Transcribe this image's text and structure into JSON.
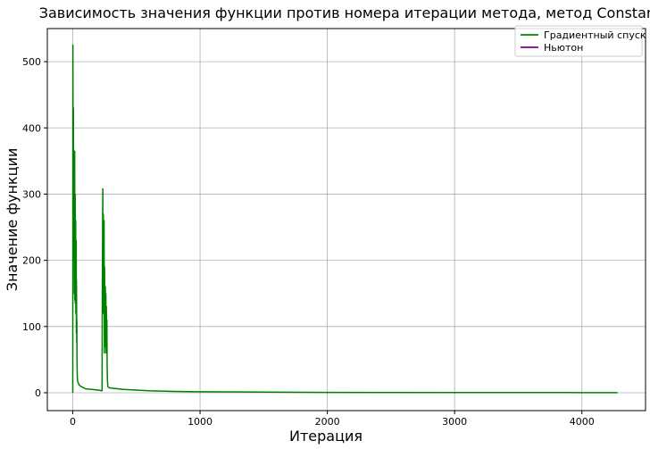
{
  "chart_data": {
    "type": "line",
    "title": "Зависимость значения функции против номера итерации метода, метод Constant",
    "xlabel": "Итерация",
    "ylabel": "Значение функции",
    "xlim": [
      -200,
      4500
    ],
    "ylim": [
      -27,
      550
    ],
    "xticks": [
      0,
      1000,
      2000,
      3000,
      4000
    ],
    "yticks": [
      0,
      100,
      200,
      300,
      400,
      500
    ],
    "grid": true,
    "legend_position": "top-right",
    "series": [
      {
        "name": "Градиентный спуск",
        "color": "#008000",
        "x": [
          0,
          1,
          2,
          3,
          4,
          5,
          6,
          7,
          8,
          9,
          10,
          11,
          12,
          13,
          14,
          15,
          16,
          17,
          18,
          19,
          20,
          21,
          22,
          23,
          24,
          25,
          26,
          27,
          28,
          29,
          30,
          31,
          32,
          33,
          34,
          35,
          36,
          38,
          40,
          45,
          50,
          60,
          80,
          100,
          150,
          200,
          230,
          232,
          234,
          236,
          238,
          240,
          242,
          244,
          246,
          248,
          250,
          252,
          254,
          256,
          258,
          260,
          262,
          264,
          266,
          268,
          270,
          272,
          275,
          280,
          300,
          400,
          600,
          800,
          1000,
          1500,
          2000,
          3000,
          4000,
          4280
        ],
        "y": [
          0,
          525,
          400,
          300,
          250,
          430,
          320,
          240,
          200,
          360,
          280,
          330,
          150,
          250,
          180,
          365,
          140,
          290,
          210,
          300,
          135,
          230,
          180,
          260,
          120,
          200,
          160,
          230,
          90,
          170,
          130,
          75,
          110,
          60,
          40,
          28,
          22,
          18,
          16,
          14,
          12,
          10,
          8,
          6,
          5,
          4,
          3,
          150,
          230,
          308,
          120,
          270,
          200,
          130,
          260,
          60,
          190,
          120,
          70,
          160,
          90,
          150,
          60,
          130,
          80,
          110,
          40,
          20,
          10,
          8,
          7,
          5,
          3,
          2,
          1.5,
          1,
          0.5,
          0.3,
          0.2,
          0.1
        ]
      },
      {
        "name": "Ньютон",
        "color": "#800080",
        "x": [],
        "y": []
      }
    ]
  }
}
